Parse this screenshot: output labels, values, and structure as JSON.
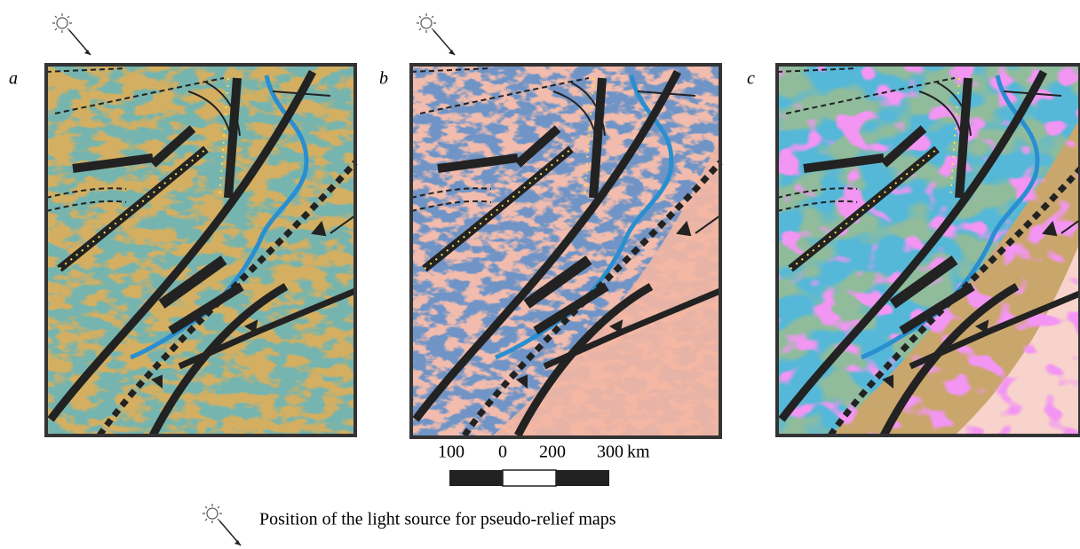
{
  "panels": [
    {
      "label": "a"
    },
    {
      "label": "b"
    },
    {
      "label": "c"
    }
  ],
  "scale_bar": {
    "labels": [
      "100",
      "0",
      "200",
      "300"
    ],
    "unit": "km"
  },
  "legend": {
    "text": "Position of the light source for pseudo-relief maps"
  }
}
